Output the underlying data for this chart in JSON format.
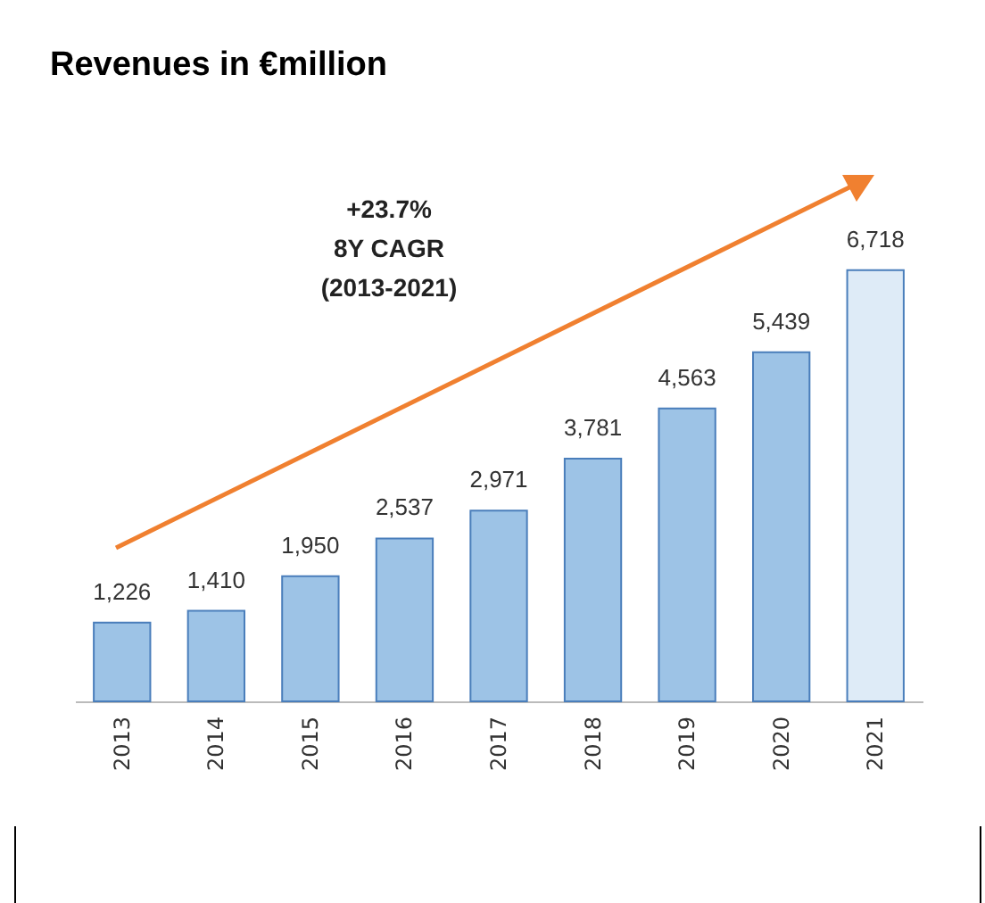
{
  "chart_data": {
    "type": "bar",
    "title": "Revenues in €million",
    "categories": [
      "2013",
      "2014",
      "2015",
      "2016",
      "2017",
      "2018",
      "2019",
      "2020",
      "2021"
    ],
    "values": [
      1226,
      1410,
      1950,
      2537,
      2971,
      3781,
      4563,
      5439,
      6718
    ],
    "colors": [
      "#9dc3e6",
      "#9dc3e6",
      "#9dc3e6",
      "#9dc3e6",
      "#9dc3e6",
      "#9dc3e6",
      "#9dc3e6",
      "#9dc3e6",
      "#deebf7"
    ],
    "value_labels": [
      "1,226",
      "1,410",
      "1,950",
      "2,537",
      "2,971",
      "3,781",
      "4,563",
      "5,439",
      "6,718"
    ],
    "annotations": [
      "+23.7%\n8Y CAGR\n(2013-2021)"
    ]
  }
}
